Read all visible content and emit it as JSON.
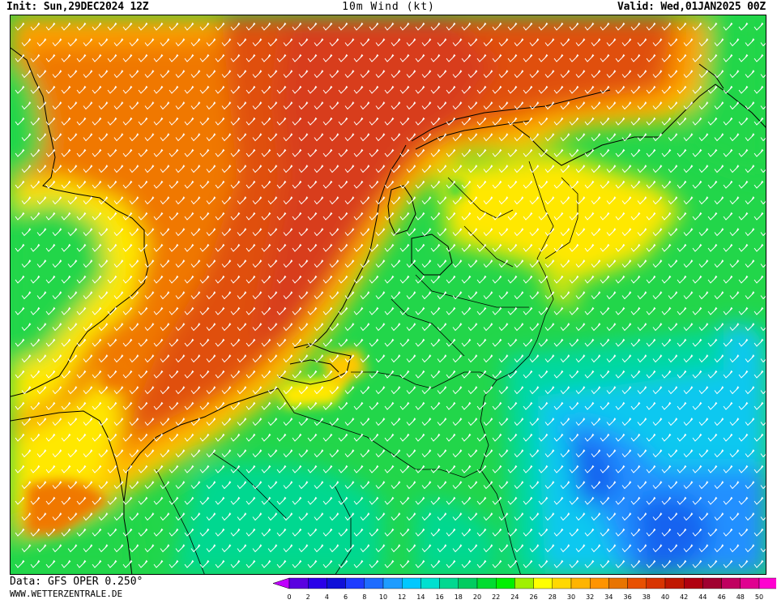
{
  "header": {
    "init": "Init: Sun,29DEC2024 12Z",
    "title": "10m Wind (kt)",
    "valid": "Valid: Wed,01JAN2025 00Z"
  },
  "footer": {
    "data_source": "Data: GFS OPER 0.250°",
    "website": "WWW.WETTERZENTRALE.DE"
  },
  "legend": {
    "ticks": [
      "0",
      "2",
      "4",
      "6",
      "8",
      "10",
      "12",
      "14",
      "16",
      "18",
      "20",
      "22",
      "24",
      "26",
      "28",
      "30",
      "32",
      "34",
      "36",
      "38",
      "40",
      "42",
      "44",
      "46",
      "48",
      "50"
    ],
    "colors": [
      "#5a00e0",
      "#2a00e8",
      "#1010d8",
      "#1e3cff",
      "#1e6cff",
      "#1e9cff",
      "#00c8ff",
      "#00e0d0",
      "#00d890",
      "#00cc60",
      "#00dc30",
      "#00f000",
      "#a0f000",
      "#ffff00",
      "#ffd800",
      "#ffb400",
      "#ff9400",
      "#e87400",
      "#e85000",
      "#d83400",
      "#c01800",
      "#b00010",
      "#a00030",
      "#c00060",
      "#e00090",
      "#ff00d0"
    ],
    "under_color": "#c000ff",
    "over_color": "#ff00d0"
  },
  "map": {
    "region": "Netherlands / North Sea",
    "wind_direction": "southwest",
    "palette": {
      "green": "#22d64a",
      "green_light": "#40e060",
      "teal": "#00d8a0",
      "cyan": "#10c8f0",
      "blue": "#2090ff",
      "blue_dark": "#1464f0",
      "yellow": "#ffe800",
      "yellow_orange": "#ffc800",
      "orange": "#ffa000",
      "orange_dark": "#f07800",
      "red_orange": "#e05010",
      "red": "#d83c1c"
    }
  }
}
